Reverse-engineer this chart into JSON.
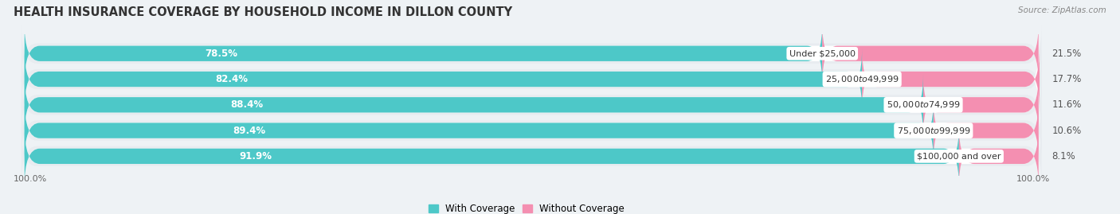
{
  "title": "HEALTH INSURANCE COVERAGE BY HOUSEHOLD INCOME IN DILLON COUNTY",
  "source": "Source: ZipAtlas.com",
  "categories": [
    "Under $25,000",
    "$25,000 to $49,999",
    "$50,000 to $74,999",
    "$75,000 to $99,999",
    "$100,000 and over"
  ],
  "with_coverage": [
    78.5,
    82.4,
    88.4,
    89.4,
    91.9
  ],
  "without_coverage": [
    21.5,
    17.7,
    11.6,
    10.6,
    8.1
  ],
  "color_coverage": "#4dc8c8",
  "color_without": "#f48fb1",
  "background_color": "#eef2f5",
  "bar_background": "#ffffff",
  "row_background": "#e8ecf0",
  "legend_labels": [
    "With Coverage",
    "Without Coverage"
  ],
  "title_fontsize": 10.5,
  "label_fontsize": 8.5,
  "pct_fontsize": 8.5,
  "cat_fontsize": 8.0,
  "tick_fontsize": 8.0,
  "source_fontsize": 7.5
}
